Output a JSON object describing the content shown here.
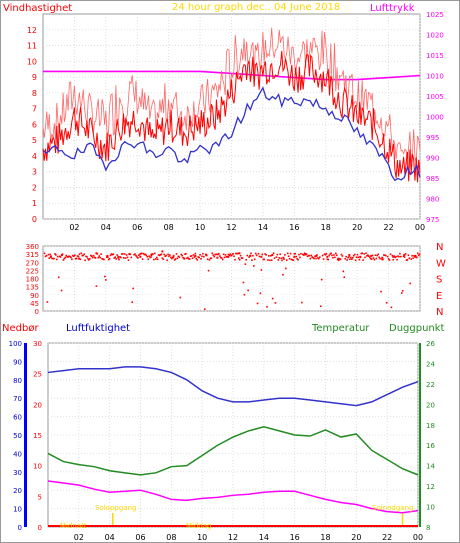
{
  "header": {
    "title": "24 hour graph dec.. 04 June 2018",
    "left_label": "Vindhastighet",
    "right_label": "Lufttrykk"
  },
  "lower_header": {
    "precip": "Nedbør",
    "humidity": "Luftfuktighet",
    "temperature": "Temperatur",
    "dewpoint": "Duggpunkt"
  },
  "annotations": {
    "sunrise": "Soloppgang",
    "sunset": "Solnedgang",
    "midnight": "Midnatt",
    "noon": "Middag"
  },
  "colors": {
    "wind": "#ff0000",
    "wind_avg": "#3333cc",
    "pressure": "#ff00ff",
    "humidity": "#3333cc",
    "temperature": "#228b22",
    "dewpoint": "#ff00ff",
    "precip": "#0000ff",
    "sun": "#ffd700"
  },
  "x_ticks": [
    "02",
    "04",
    "06",
    "08",
    "10",
    "12",
    "14",
    "16",
    "18",
    "20",
    "22",
    "00"
  ],
  "chart_data": [
    {
      "type": "line",
      "id": "wind-pressure",
      "x_range": [
        0,
        24
      ],
      "left_axis": {
        "label": "Vindhastighet",
        "ylim": [
          0,
          13
        ],
        "ticks": [
          0,
          1,
          2,
          3,
          4,
          5,
          6,
          7,
          8,
          9,
          10,
          11,
          12
        ]
      },
      "right_axis": {
        "label": "Lufttrykk",
        "ylim": [
          975,
          1025
        ],
        "ticks": [
          975,
          980,
          985,
          990,
          995,
          1000,
          1005,
          1010,
          1015,
          1020,
          1025
        ]
      },
      "series": [
        {
          "name": "Vindhastighet",
          "axis": "left",
          "x": [
            0.0,
            1.0,
            2.0,
            3.0,
            4.0,
            5.0,
            6.0,
            7.0,
            8.0,
            9.0,
            10.0,
            11.0,
            12.0,
            12.5,
            13.0,
            13.5,
            14.0,
            15.0,
            16.0,
            17.0,
            18.0,
            19.0,
            20.0,
            21.0,
            22.0,
            22.5,
            23.0,
            23.5,
            24.0
          ],
          "y": [
            4.5,
            5.0,
            6.5,
            5.5,
            4.5,
            6.0,
            6.5,
            5.0,
            6.0,
            5.5,
            6.0,
            6.5,
            8.0,
            9.0,
            10.0,
            9.0,
            9.5,
            10.0,
            9.0,
            9.5,
            9.0,
            7.5,
            6.5,
            6.0,
            4.5,
            3.5,
            3.0,
            3.5,
            3.0
          ],
          "gusts_y": [
            7.0,
            7.5,
            9.5,
            8.0,
            7.5,
            10.0,
            9.0,
            7.5,
            9.0,
            7.5,
            8.5,
            9.5,
            11.5,
            12.0,
            12.7,
            11.0,
            12.0,
            12.5,
            11.5,
            12.0,
            12.0,
            10.5,
            9.0,
            8.5,
            7.0,
            5.5,
            4.5,
            6.0,
            5.5
          ]
        },
        {
          "name": "",
          "axis": "left",
          "x": [
            0.0,
            1.0,
            2.0,
            3.0,
            4.0,
            5.0,
            6.0,
            7.0,
            8.0,
            9.0,
            10.0,
            11.0,
            12.0,
            13.0,
            14.0,
            15.0,
            16.0,
            17.0,
            18.0,
            19.0,
            20.0,
            21.0,
            22.0,
            22.5,
            23.0,
            24.0
          ],
          "y": [
            4.0,
            4.5,
            4.0,
            4.5,
            3.5,
            4.5,
            5.0,
            4.0,
            4.5,
            3.5,
            4.5,
            4.5,
            5.5,
            7.0,
            8.0,
            7.5,
            7.5,
            7.5,
            7.0,
            6.5,
            5.5,
            4.5,
            3.5,
            2.5,
            3.0,
            3.0
          ]
        },
        {
          "name": "Lufttrykk",
          "axis": "right",
          "x": [
            0.0,
            2.0,
            4.0,
            6.0,
            8.0,
            10.0,
            12.0,
            14.0,
            16.0,
            18.0,
            20.0,
            22.0,
            24.0
          ],
          "y": [
            1011.0,
            1011.0,
            1011.0,
            1011.0,
            1011.0,
            1011.0,
            1010.5,
            1010.0,
            1009.5,
            1009.0,
            1009.0,
            1009.5,
            1010.0
          ]
        }
      ]
    },
    {
      "type": "scatter",
      "id": "wind-direction",
      "x_range": [
        0,
        24
      ],
      "left_axis": {
        "ylim": [
          0,
          360
        ],
        "ticks": [
          0,
          45,
          90,
          135,
          180,
          225,
          270,
          315,
          360
        ],
        "tick_labels": [
          "0",
          "45",
          "90",
          "135",
          "180",
          "225",
          "270",
          "315",
          "360"
        ]
      },
      "right_axis": {
        "ticks": [
          0,
          90,
          180,
          270,
          360
        ],
        "tick_labels": [
          "N",
          "E",
          "S",
          "W",
          "N"
        ]
      },
      "series": [
        {
          "name": "Vindretning",
          "x": [
            0.5,
            1.2,
            2.3,
            3.4,
            4.1,
            4.8,
            5.5,
            6.2,
            6.9,
            7.6,
            8.3,
            9.0,
            9.7,
            10.4,
            11.1,
            11.8,
            12.5,
            13.2,
            13.9,
            14.6,
            15.3,
            16.0,
            16.7,
            17.4,
            18.1,
            18.8,
            19.5,
            20.2,
            20.9,
            21.6,
            22.3,
            23.0,
            23.7
          ],
          "y": [
            300,
            310,
            290,
            320,
            305,
            295,
            315,
            300,
            310,
            330,
            300,
            290,
            305,
            310,
            295,
            300,
            320,
            305,
            300,
            310,
            295,
            300,
            315,
            305,
            300,
            290,
            310,
            300,
            305,
            295,
            300,
            310,
            305
          ]
        }
      ]
    },
    {
      "type": "line",
      "id": "humidity-temperature",
      "x_range": [
        0,
        24
      ],
      "axes": [
        {
          "label": "Nedbør",
          "ylim": [
            0,
            30
          ],
          "ticks": [
            0,
            5,
            10,
            15,
            20,
            25,
            30
          ]
        },
        {
          "label": "Luftfuktighet",
          "ylim": [
            0,
            100
          ],
          "ticks": [
            0,
            10,
            20,
            30,
            40,
            50,
            60,
            70,
            80,
            90,
            100
          ]
        },
        {
          "label": "Temperatur",
          "ylim": [
            8,
            26
          ],
          "ticks": [
            8,
            10,
            12,
            14,
            16,
            18,
            20,
            22,
            24,
            26
          ]
        }
      ],
      "series": [
        {
          "name": "Luftfuktighet",
          "axis": "humidity",
          "x": [
            0.0,
            1.0,
            2.0,
            3.0,
            4.0,
            5.0,
            6.0,
            7.0,
            8.0,
            9.0,
            10.0,
            11.0,
            12.0,
            13.0,
            14.0,
            15.0,
            16.0,
            17.0,
            18.0,
            19.0,
            20.0,
            21.0,
            22.0,
            23.0,
            24.0
          ],
          "y": [
            84,
            85,
            86,
            86,
            86,
            87,
            87,
            86,
            84,
            80,
            74,
            70,
            68,
            68,
            69,
            70,
            70,
            69,
            68,
            67,
            66,
            68,
            72,
            76,
            79
          ]
        },
        {
          "name": "Temperatur",
          "axis": "temperature",
          "x": [
            0.0,
            1.0,
            2.0,
            3.0,
            4.0,
            5.0,
            6.0,
            7.0,
            8.0,
            9.0,
            10.0,
            11.0,
            12.0,
            13.0,
            14.0,
            15.0,
            16.0,
            17.0,
            18.0,
            19.0,
            20.0,
            21.0,
            22.0,
            23.0,
            24.0
          ],
          "y": [
            15.2,
            14.4,
            14.1,
            13.9,
            13.5,
            13.3,
            13.1,
            13.3,
            13.9,
            14.0,
            15.0,
            16.0,
            16.8,
            17.4,
            17.8,
            17.4,
            17.0,
            16.9,
            17.5,
            16.8,
            17.1,
            15.5,
            14.6,
            13.7,
            13.1
          ]
        },
        {
          "name": "Duggpunkt",
          "axis": "temperature",
          "x": [
            0.0,
            1.0,
            2.0,
            3.0,
            4.0,
            5.0,
            6.0,
            7.0,
            8.0,
            9.0,
            10.0,
            11.0,
            12.0,
            13.0,
            14.0,
            15.0,
            16.0,
            17.0,
            18.0,
            19.0,
            20.0,
            21.0,
            22.0,
            23.0,
            24.0
          ],
          "y": [
            12.5,
            12.3,
            12.1,
            11.7,
            11.4,
            11.5,
            11.6,
            11.2,
            10.7,
            10.6,
            10.8,
            10.9,
            11.1,
            11.2,
            11.4,
            11.5,
            11.5,
            11.1,
            10.7,
            10.4,
            10.2,
            9.8,
            9.5,
            9.4,
            9.6
          ]
        },
        {
          "name": "Nedbør",
          "axis": "precip",
          "x": [
            0.0,
            24.0
          ],
          "y": [
            0,
            0
          ]
        }
      ]
    }
  ]
}
